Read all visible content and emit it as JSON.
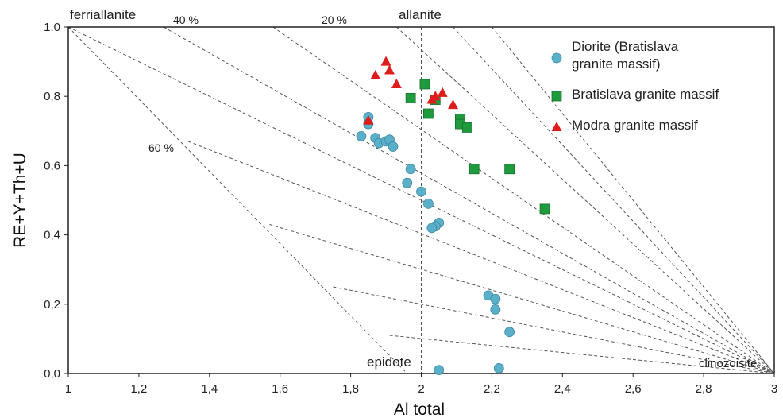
{
  "chart_data": {
    "type": "scatter",
    "xlabel": "Al total",
    "ylabel": "RE+Y+Th+U",
    "xlim": [
      1,
      3
    ],
    "ylim": [
      0,
      1
    ],
    "x_ticks": [
      "1",
      "1,2",
      "1,4",
      "1,6",
      "1,8",
      "2",
      "2,2",
      "2,4",
      "2,6",
      "2,8",
      "3"
    ],
    "y_ticks": [
      "0,0",
      "0,2",
      "0,4",
      "0,6",
      "0,8",
      "1.0"
    ],
    "grid": false,
    "legend_position": "top-right",
    "annotations": {
      "ferriallanite": "ferriallanite",
      "allanite": "allanite",
      "epidote": "epidote",
      "clinozoisite": "clinozoisite",
      "p40": "40 %",
      "p20": "20 %",
      "p60": "60 %"
    },
    "series": [
      {
        "name": "Diorite (Bratislava granite massif)",
        "legend_lines": [
          "Diorite (Bratislava",
          "granite massif)"
        ],
        "marker": "circle",
        "color": "#5aafc9",
        "points": [
          [
            1.85,
            0.74
          ],
          [
            1.85,
            0.72
          ],
          [
            1.83,
            0.685
          ],
          [
            1.87,
            0.68
          ],
          [
            1.88,
            0.665
          ],
          [
            1.9,
            0.67
          ],
          [
            1.91,
            0.675
          ],
          [
            1.92,
            0.655
          ],
          [
            1.97,
            0.59
          ],
          [
            1.96,
            0.55
          ],
          [
            2.0,
            0.525
          ],
          [
            2.02,
            0.49
          ],
          [
            2.05,
            0.435
          ],
          [
            2.04,
            0.425
          ],
          [
            2.03,
            0.42
          ],
          [
            2.19,
            0.225
          ],
          [
            2.21,
            0.215
          ],
          [
            2.21,
            0.185
          ],
          [
            2.25,
            0.12
          ],
          [
            2.05,
            0.01
          ],
          [
            2.22,
            0.015
          ]
        ]
      },
      {
        "name": "Bratislava granite massif",
        "legend_lines": [
          "Bratislava granite massif"
        ],
        "marker": "square",
        "color": "#1f9a3c",
        "points": [
          [
            2.01,
            0.835
          ],
          [
            1.97,
            0.795
          ],
          [
            2.04,
            0.79
          ],
          [
            2.02,
            0.75
          ],
          [
            2.11,
            0.735
          ],
          [
            2.11,
            0.72
          ],
          [
            2.13,
            0.71
          ],
          [
            2.15,
            0.59
          ],
          [
            2.25,
            0.59
          ],
          [
            2.35,
            0.475
          ]
        ]
      },
      {
        "name": "Modra granite massif",
        "legend_lines": [
          "Modra granite massif"
        ],
        "marker": "triangle",
        "color": "#e01b1b",
        "points": [
          [
            1.9,
            0.9
          ],
          [
            1.91,
            0.875
          ],
          [
            1.87,
            0.86
          ],
          [
            1.93,
            0.835
          ],
          [
            2.06,
            0.81
          ],
          [
            2.04,
            0.8
          ],
          [
            2.03,
            0.79
          ],
          [
            2.09,
            0.775
          ],
          [
            1.85,
            0.73
          ]
        ]
      }
    ]
  }
}
